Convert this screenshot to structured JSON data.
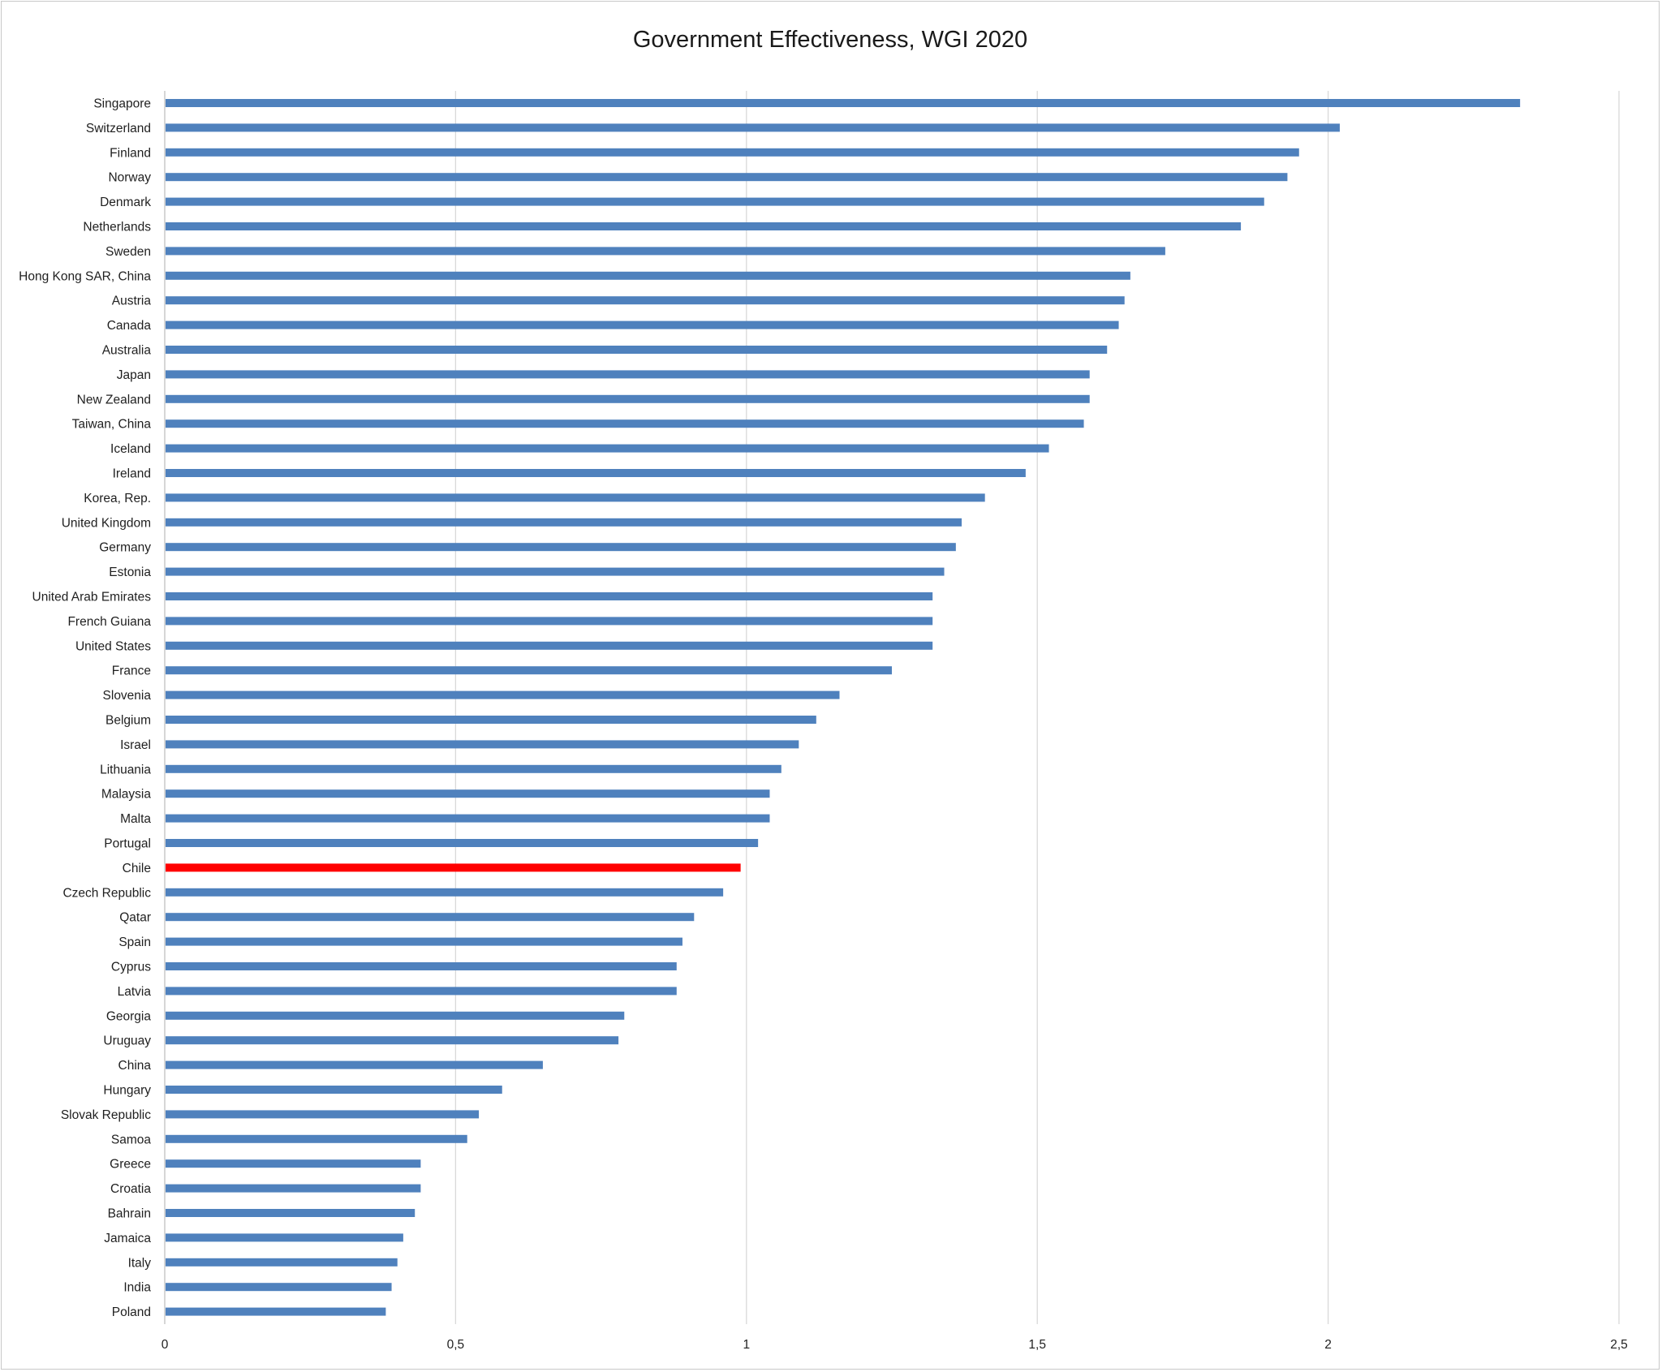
{
  "chart_data": {
    "type": "bar",
    "orientation": "horizontal",
    "title": "Government Effectiveness, WGI 2020",
    "xlabel": "",
    "ylabel": "",
    "xlim": [
      0,
      2.5
    ],
    "x_ticks": [
      {
        "value": 0,
        "label": "0"
      },
      {
        "value": 0.5,
        "label": "0,5"
      },
      {
        "value": 1,
        "label": "1"
      },
      {
        "value": 1.5,
        "label": "1,5"
      },
      {
        "value": 2,
        "label": "2"
      },
      {
        "value": 2.5,
        "label": "2,5"
      }
    ],
    "grid": "vertical",
    "legend": "none",
    "bar_color": "#4f81bd",
    "highlight_color": "#ff0000",
    "highlight_category": "Chile",
    "categories": [
      "Singapore",
      "Switzerland",
      "Finland",
      "Norway",
      "Denmark",
      "Netherlands",
      "Sweden",
      "Hong Kong SAR, China",
      "Austria",
      "Canada",
      "Australia",
      "Japan",
      "New Zealand",
      "Taiwan, China",
      "Iceland",
      "Ireland",
      "Korea, Rep.",
      "United Kingdom",
      "Germany",
      "Estonia",
      "United Arab Emirates",
      "French Guiana",
      "United States",
      "France",
      "Slovenia",
      "Belgium",
      "Israel",
      "Lithuania",
      "Malaysia",
      "Malta",
      "Portugal",
      "Chile",
      "Czech Republic",
      "Qatar",
      "Spain",
      "Cyprus",
      "Latvia",
      "Georgia",
      "Uruguay",
      "China",
      "Hungary",
      "Slovak Republic",
      "Samoa",
      "Greece",
      "Croatia",
      "Bahrain",
      "Jamaica",
      "Italy",
      "India",
      "Poland"
    ],
    "values": [
      2.33,
      2.02,
      1.95,
      1.93,
      1.89,
      1.85,
      1.72,
      1.66,
      1.65,
      1.64,
      1.62,
      1.59,
      1.59,
      1.58,
      1.52,
      1.48,
      1.41,
      1.37,
      1.36,
      1.34,
      1.32,
      1.32,
      1.32,
      1.25,
      1.16,
      1.12,
      1.09,
      1.06,
      1.04,
      1.04,
      1.02,
      0.99,
      0.96,
      0.91,
      0.89,
      0.88,
      0.88,
      0.79,
      0.78,
      0.65,
      0.58,
      0.54,
      0.52,
      0.44,
      0.44,
      0.43,
      0.41,
      0.4,
      0.39,
      0.38
    ]
  }
}
